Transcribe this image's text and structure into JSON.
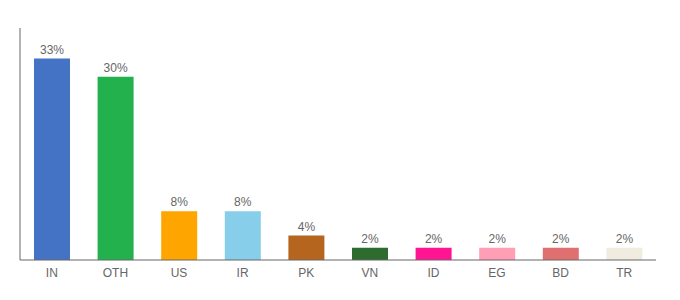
{
  "chart_data": {
    "type": "bar",
    "categories": [
      "IN",
      "OTH",
      "US",
      "IR",
      "PK",
      "VN",
      "ID",
      "EG",
      "BD",
      "TR"
    ],
    "values": [
      33,
      30,
      8,
      8,
      4,
      2,
      2,
      2,
      2,
      2
    ],
    "value_labels": [
      "33%",
      "30%",
      "8%",
      "8%",
      "4%",
      "2%",
      "2%",
      "2%",
      "2%",
      "2%"
    ],
    "colors": [
      "#4472c4",
      "#22b14c",
      "#ffa500",
      "#87ceeb",
      "#b5651d",
      "#2e6b2e",
      "#ff1493",
      "#ff9eb5",
      "#e07070",
      "#f0ece0"
    ],
    "ylim": [
      0,
      38
    ],
    "data_labels": true,
    "tick_labels": "x",
    "grid": false
  }
}
